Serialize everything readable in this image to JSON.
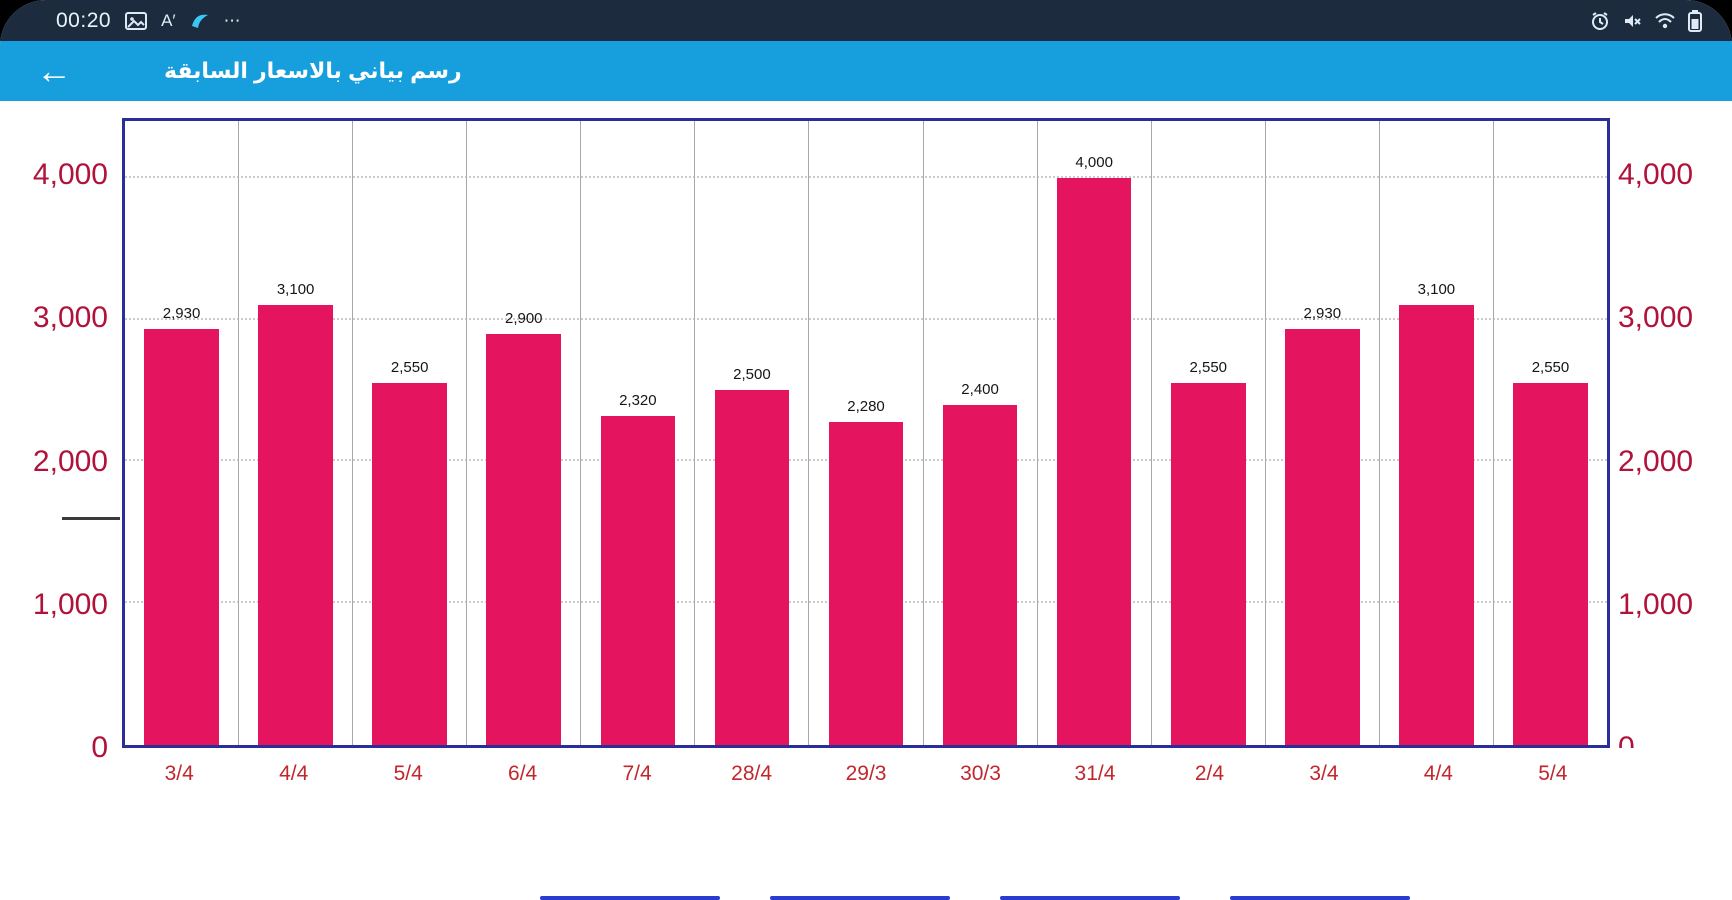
{
  "status_bar": {
    "time": "00:20",
    "font_size_label": "A′",
    "more_label": "⋯"
  },
  "header": {
    "back_icon": "←",
    "title": "رسم بياني بالاسعار السابقة"
  },
  "chart_data": {
    "type": "bar",
    "title": "",
    "categories": [
      "3/4",
      "4/4",
      "5/4",
      "6/4",
      "7/4",
      "28/4",
      "29/3",
      "30/3",
      "31/4",
      "2/4",
      "3/4",
      "4/4",
      "5/4"
    ],
    "values": [
      2930,
      3100,
      2550,
      2900,
      2320,
      2500,
      2280,
      2400,
      4000,
      2550,
      2930,
      3100,
      2550
    ],
    "value_labels": [
      "2,930",
      "3,100",
      "2,550",
      "2,900",
      "2,320",
      "2,500",
      "2,280",
      "2,400",
      "4,000",
      "2,550",
      "2,930",
      "3,100",
      "2,550"
    ],
    "y_ticks": [
      "0",
      "1,000",
      "2,000",
      "3,000",
      "4,000"
    ],
    "y_tick_values": [
      0,
      1000,
      2000,
      3000,
      4000
    ],
    "ylim": [
      0,
      4400
    ],
    "xlabel": "",
    "ylabel": "",
    "grid": true,
    "bar_color": "#e5145f",
    "axis_label_color": "#b0123a",
    "x_label_color": "#c1272d",
    "plot_border_color": "#2b2e99"
  }
}
